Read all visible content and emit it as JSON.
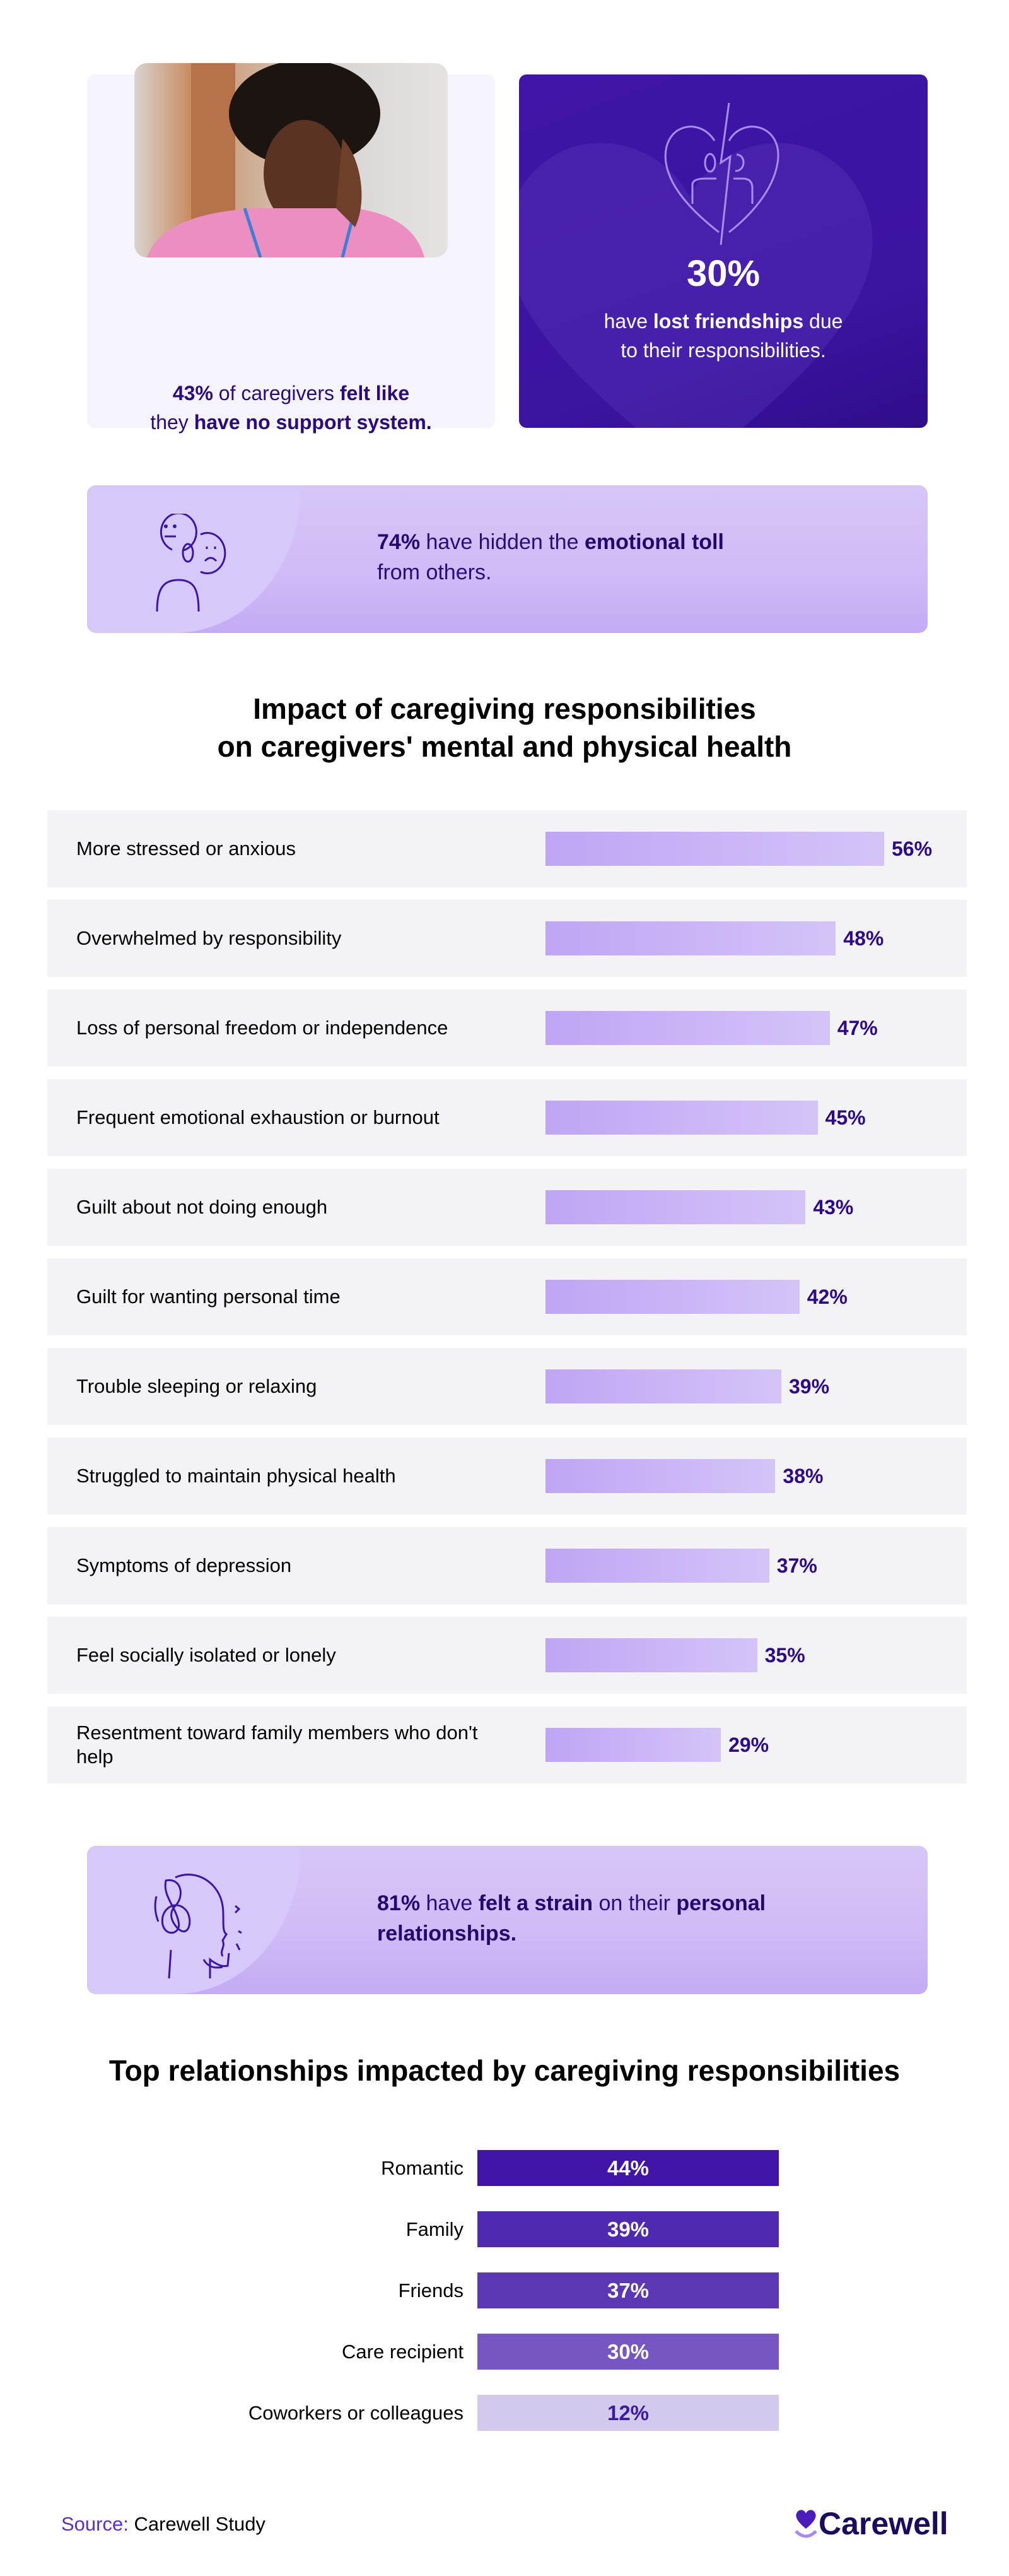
{
  "stat_support": {
    "pct": "43%",
    "t1": " of caregivers ",
    "b1": "felt like",
    "t2": "they ",
    "b2": "have no support system."
  },
  "stat_friendships": {
    "pct": "30%",
    "t1": "have ",
    "b1": "lost friendships",
    "t2": " due",
    "line2": "to their responsibilities."
  },
  "stat_hidden": {
    "pct": "74%",
    "t1": " have hidden the ",
    "b1": "emotional toll",
    "line2": "from others."
  },
  "stat_strain": {
    "pct": "81%",
    "t1": " have ",
    "b1": "felt a strain",
    "t2": " on their ",
    "b2": "personal",
    "line2": "relationships."
  },
  "chart_data": [
    {
      "type": "bar",
      "orientation": "horizontal",
      "title": "Impact of caregiving responsibilities on caregivers' mental and physical health",
      "title_lines": [
        "Impact of caregiving responsibilities",
        "on caregivers' mental and physical health"
      ],
      "categories": [
        "More stressed or anxious",
        "Overwhelmed by responsibility",
        "Loss of personal freedom or independence",
        "Frequent emotional exhaustion or burnout",
        "Guilt about not doing enough",
        "Guilt for wanting personal time",
        "Trouble sleeping or relaxing",
        "Struggled to maintain physical health",
        "Symptoms of depression",
        "Feel socially isolated or lonely",
        "Resentment toward family members who don't help"
      ],
      "values": [
        56,
        48,
        47,
        45,
        43,
        42,
        39,
        38,
        37,
        35,
        29
      ],
      "labels": [
        "56%",
        "48%",
        "47%",
        "45%",
        "43%",
        "42%",
        "39%",
        "38%",
        "37%",
        "35%",
        "29%"
      ],
      "bar_color": "#c4aef5"
    },
    {
      "type": "bar",
      "orientation": "horizontal",
      "title": "Top relationships impacted by caregiving responsibilities",
      "categories": [
        "Romantic",
        "Family",
        "Friends",
        "Care recipient",
        "Coworkers or colleagues"
      ],
      "values": [
        44,
        39,
        37,
        30,
        12
      ],
      "labels": [
        "44%",
        "39%",
        "37%",
        "30%",
        "12%"
      ],
      "colors": [
        "#4015a8",
        "#4f2ab0",
        "#5b37b5",
        "#7656c0",
        "#d3c9ec"
      ]
    }
  ],
  "footer": {
    "source_label": "Source:",
    "source_value": " Carewell Study",
    "logo": "Carewell"
  }
}
